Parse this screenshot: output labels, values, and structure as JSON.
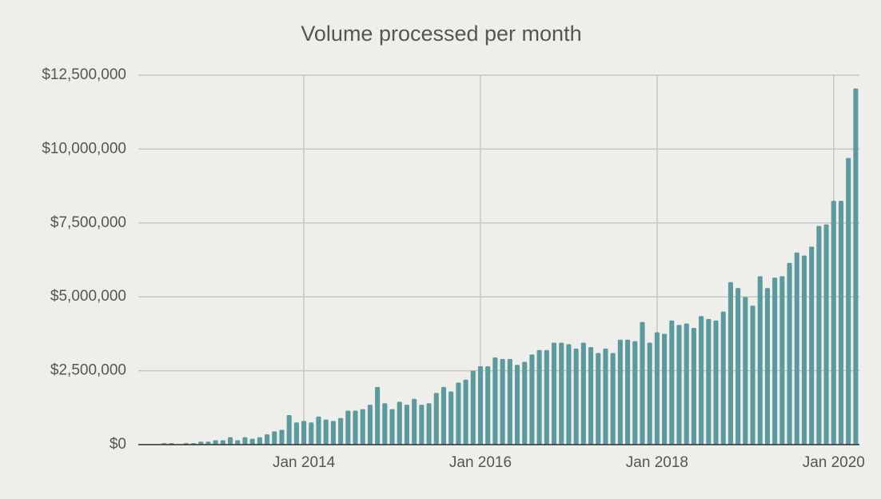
{
  "chart_data": {
    "type": "bar",
    "title": "Volume processed per month",
    "categories": [
      null,
      null,
      null,
      null,
      null,
      null,
      null,
      null,
      null,
      null,
      null,
      null,
      null,
      null,
      null,
      null,
      null,
      null,
      null,
      null,
      null,
      null,
      "Jan 2014",
      null,
      null,
      null,
      null,
      null,
      null,
      null,
      null,
      null,
      null,
      null,
      null,
      null,
      null,
      null,
      null,
      null,
      null,
      null,
      null,
      null,
      null,
      null,
      "Jan 2016",
      null,
      null,
      null,
      null,
      null,
      null,
      null,
      null,
      null,
      null,
      null,
      null,
      null,
      null,
      null,
      null,
      null,
      null,
      null,
      null,
      null,
      null,
      null,
      "Jan 2018",
      null,
      null,
      null,
      null,
      null,
      null,
      null,
      null,
      null,
      null,
      null,
      null,
      null,
      null,
      null,
      null,
      null,
      null,
      null,
      null,
      null,
      null,
      null,
      "Jan 2020",
      null,
      null,
      null
    ],
    "values": [
      0,
      0,
      0,
      50000,
      50000,
      0,
      50000,
      50000,
      100000,
      100000,
      150000,
      150000,
      250000,
      150000,
      250000,
      200000,
      250000,
      350000,
      450000,
      500000,
      1000000,
      750000,
      800000,
      750000,
      950000,
      850000,
      800000,
      900000,
      1150000,
      1150000,
      1200000,
      1350000,
      1950000,
      1400000,
      1200000,
      1450000,
      1350000,
      1550000,
      1350000,
      1400000,
      1750000,
      1950000,
      1800000,
      2100000,
      2200000,
      2500000,
      2650000,
      2650000,
      2950000,
      2900000,
      2900000,
      2700000,
      2800000,
      3050000,
      3200000,
      3200000,
      3450000,
      3450000,
      3400000,
      3250000,
      3450000,
      3300000,
      3100000,
      3250000,
      3100000,
      3550000,
      3550000,
      3500000,
      4150000,
      3450000,
      3800000,
      3750000,
      4200000,
      4050000,
      4100000,
      3950000,
      4350000,
      4250000,
      4200000,
      4500000,
      5500000,
      5300000,
      5000000,
      4700000,
      5700000,
      5300000,
      5650000,
      5700000,
      6150000,
      6500000,
      6400000,
      6700000,
      7400000,
      7450000,
      8250000,
      8250000,
      9700000,
      12050000
    ],
    "color": "#5b9a9e",
    "ylim": [
      0,
      12500000
    ],
    "yticks": [
      {
        "value": 0,
        "label": "$0"
      },
      {
        "value": 2500000,
        "label": "$2,500,000"
      },
      {
        "value": 5000000,
        "label": "$5,000,000"
      },
      {
        "value": 7500000,
        "label": "$7,500,000"
      },
      {
        "value": 10000000,
        "label": "$10,000,000"
      },
      {
        "value": 12500000,
        "label": "$12,500,000"
      }
    ],
    "grid": true
  }
}
